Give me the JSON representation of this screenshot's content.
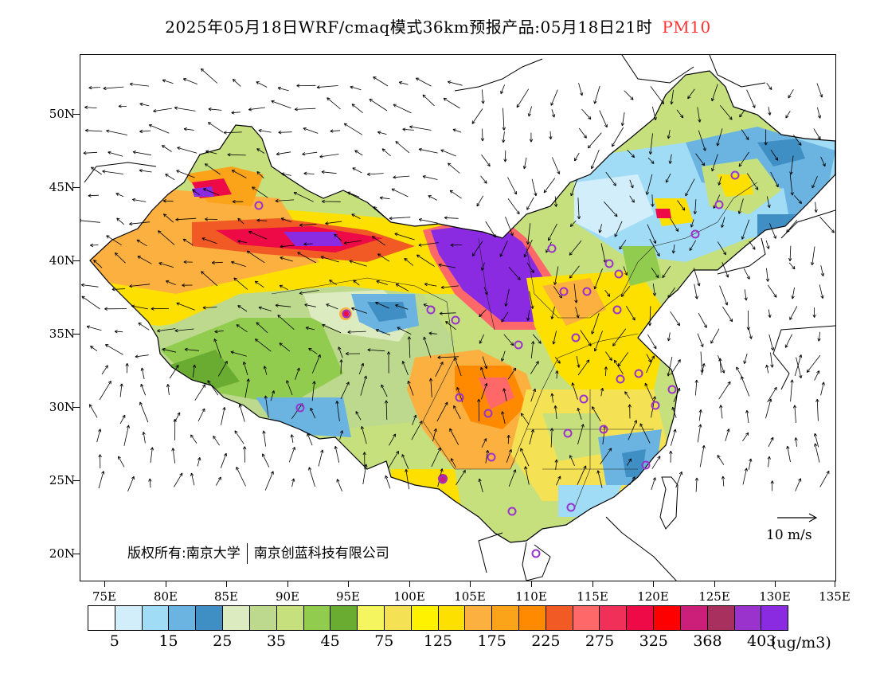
{
  "title": {
    "text": "2025年05月18日WRF/cmaq模式36km预报产品:05月18日21时",
    "pollutant": "PM10",
    "pollutant_color": "#ff3333"
  },
  "map": {
    "projection": "lat-lon",
    "lon_range": [
      73,
      135
    ],
    "lat_range": [
      18,
      54
    ],
    "lat_ticks": [
      "50N",
      "45N",
      "40N",
      "35N",
      "30N",
      "25N",
      "20N"
    ],
    "lon_ticks": [
      "75E",
      "80E",
      "85E",
      "90E",
      "95E",
      "100E",
      "105E",
      "110E",
      "115E",
      "120E",
      "125E",
      "130E",
      "135E"
    ],
    "copyright_left": "版权所有:南京大学",
    "copyright_right": "南京创蓝科技有限公司",
    "wind_reference": "10 m/s"
  },
  "legend": {
    "colors": [
      "#ffffff",
      "#d2eefb",
      "#a0dcf5",
      "#6bb3e0",
      "#3f8ec4",
      "#dcebc0",
      "#bcd98e",
      "#c6e07e",
      "#92cc4e",
      "#6aac32",
      "#f5f560",
      "#f5e154",
      "#fff200",
      "#fee000",
      "#fbb040",
      "#fba41a",
      "#ff8a00",
      "#f15a24",
      "#ff6868",
      "#f1305a",
      "#ee0a46",
      "#ff0000",
      "#cc1f7a",
      "#a8305e",
      "#9933cc",
      "#8a2be2"
    ],
    "labels": [
      "5",
      "15",
      "25",
      "35",
      "45",
      "75",
      "125",
      "175",
      "225",
      "275",
      "325",
      "368",
      "403"
    ],
    "unit": "(ug/m3)"
  }
}
